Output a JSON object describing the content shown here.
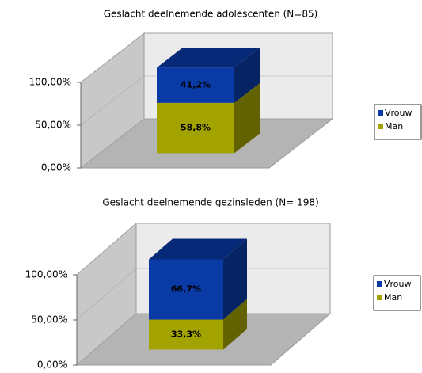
{
  "chart_data": [
    {
      "type": "bar3d_stacked",
      "title": "Geslacht deelnemende adolescenten (N=85)",
      "categories": [
        null
      ],
      "series": [
        {
          "name": "Man",
          "color": "#a3a300",
          "values": [
            58.8
          ],
          "value_labels": [
            "58,8%"
          ]
        },
        {
          "name": "Vrouw",
          "color": "#0a3aa6",
          "values": [
            41.2
          ],
          "value_labels": [
            "41,2%"
          ]
        }
      ],
      "ylim": [
        0,
        100
      ],
      "yticks": [
        {
          "value": 0,
          "label": "0,00%"
        },
        {
          "value": 50,
          "label": "50,00%"
        },
        {
          "value": 100,
          "label": "100,00%"
        }
      ],
      "grid": true,
      "legend": "right"
    },
    {
      "type": "bar3d_stacked",
      "title": "Geslacht deelnemende gezinsleden (N= 198)",
      "categories": [
        null
      ],
      "series": [
        {
          "name": "Man",
          "color": "#a3a300",
          "values": [
            33.3
          ],
          "value_labels": [
            "33,3%"
          ]
        },
        {
          "name": "Vrouw",
          "color": "#0a3aa6",
          "values": [
            66.7
          ],
          "value_labels": [
            "66,7%"
          ]
        }
      ],
      "ylim": [
        0,
        100
      ],
      "yticks": [
        {
          "value": 0,
          "label": "0,00%"
        },
        {
          "value": 50,
          "label": "50,00%"
        },
        {
          "value": 100,
          "label": "100,00%"
        }
      ],
      "grid": true,
      "legend": "right"
    }
  ]
}
